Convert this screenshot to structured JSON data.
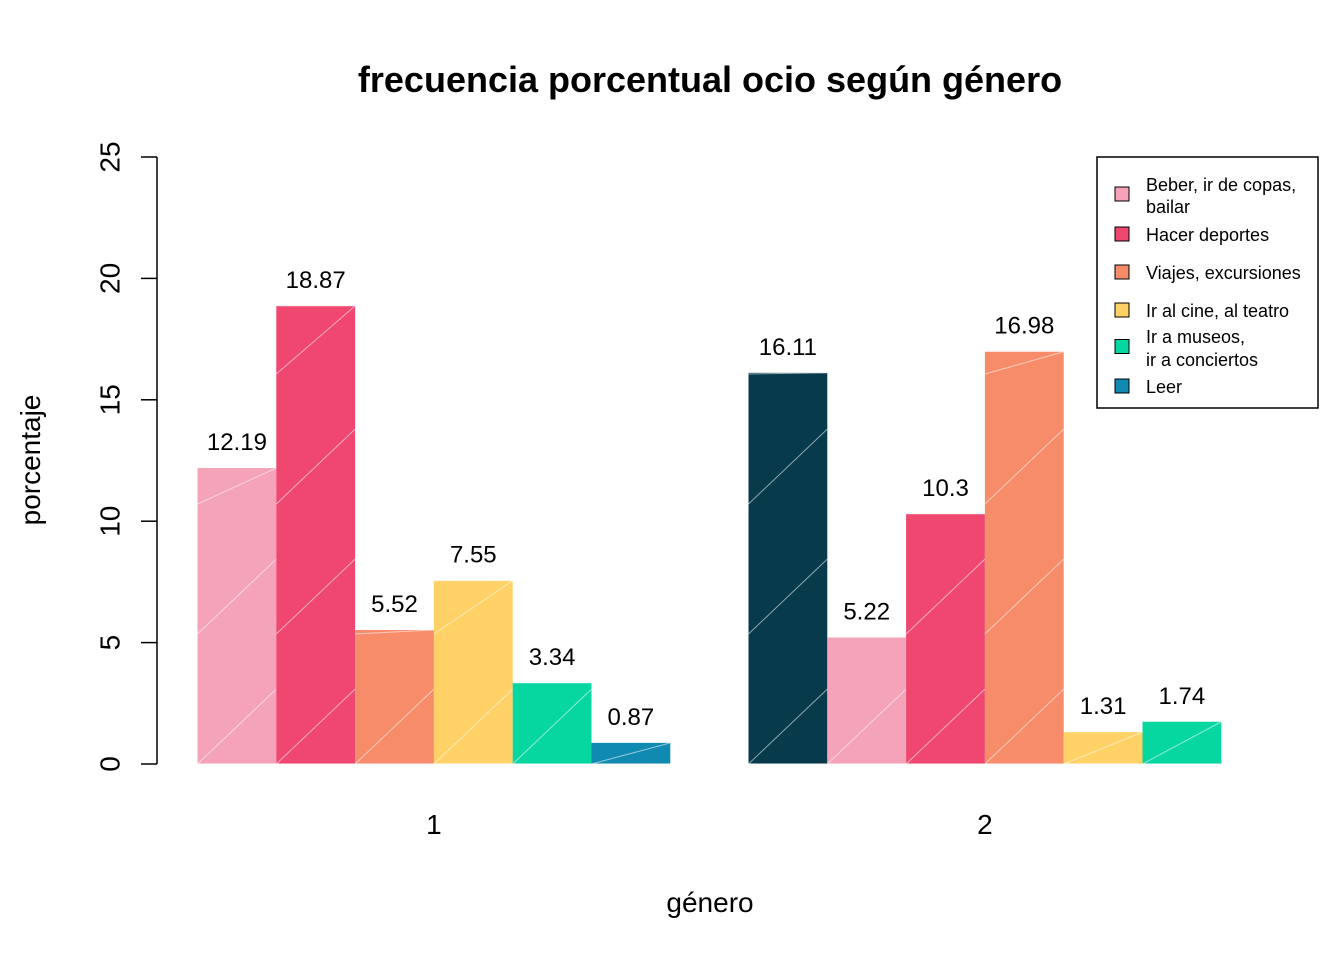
{
  "chart_data": {
    "type": "bar",
    "title": "frecuencia porcentual ocio según género",
    "xlabel": "género",
    "ylabel": "porcentaje",
    "ylim": [
      0,
      25
    ],
    "yticks": [
      "0",
      "5",
      "10",
      "15",
      "20",
      "25"
    ],
    "grid": false,
    "legend_position": "top-right",
    "groups": [
      {
        "label": "1",
        "bars": [
          {
            "value": 12.19,
            "label": "12.19",
            "color": "#F5A3B8"
          },
          {
            "value": 18.87,
            "label": "18.87",
            "color": "#EF476F"
          },
          {
            "value": 5.52,
            "label": "5.52",
            "color": "#F78C6B"
          },
          {
            "value": 7.55,
            "label": "7.55",
            "color": "#FFD166"
          },
          {
            "value": 3.34,
            "label": "3.34",
            "color": "#06D6A0"
          },
          {
            "value": 0.87,
            "label": "0.87",
            "color": "#118AB2"
          }
        ]
      },
      {
        "label": "2",
        "bars": [
          {
            "value": 16.11,
            "label": "16.11",
            "color": "#073B4C"
          },
          {
            "value": 5.22,
            "label": "5.22",
            "color": "#F5A3B8"
          },
          {
            "value": 10.3,
            "label": "10.3",
            "color": "#EF476F"
          },
          {
            "value": 16.98,
            "label": "16.98",
            "color": "#F78C6B"
          },
          {
            "value": 1.31,
            "label": "1.31",
            "color": "#FFD166"
          },
          {
            "value": 1.74,
            "label": "1.74",
            "color": "#06D6A0"
          }
        ]
      }
    ],
    "legend": [
      {
        "lines": [
          "Beber, ir de copas,",
          "bailar"
        ],
        "color": "#F5A3B8"
      },
      {
        "lines": [
          "Hacer deportes"
        ],
        "color": "#EF476F"
      },
      {
        "lines": [
          "Viajes, excursiones"
        ],
        "color": "#F78C6B"
      },
      {
        "lines": [
          "Ir al cine, al teatro"
        ],
        "color": "#FFD166"
      },
      {
        "lines": [
          "Ir a museos,",
          "ir a conciertos"
        ],
        "color": "#06D6A0"
      },
      {
        "lines": [
          "Leer"
        ],
        "color": "#118AB2"
      }
    ]
  }
}
